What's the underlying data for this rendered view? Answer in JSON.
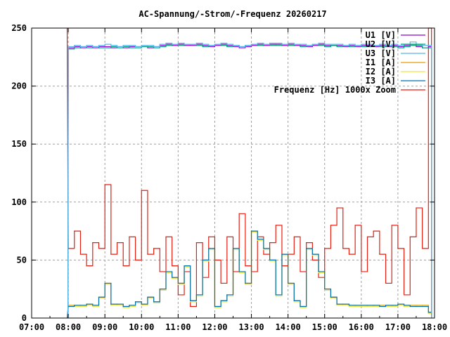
{
  "chart_data": {
    "type": "line",
    "title": "AC-Spannung/-Strom/-Frequenz 20260217",
    "xlabel": "",
    "ylabel": "",
    "ylim": [
      0,
      250
    ],
    "xlim": [
      "07:00",
      "18:00"
    ],
    "yticks": [
      "0",
      "50",
      "100",
      "150",
      "200",
      "250"
    ],
    "xticks": [
      "07:00",
      "08:00",
      "09:00",
      "10:00",
      "11:00",
      "12:00",
      "13:00",
      "14:00",
      "15:00",
      "16:00",
      "17:00",
      "18:00"
    ],
    "grid": true,
    "legend_position": "top-right",
    "x": [
      "08:00",
      "08:10",
      "08:20",
      "08:30",
      "08:40",
      "08:50",
      "09:00",
      "09:10",
      "09:20",
      "09:30",
      "09:40",
      "09:50",
      "10:00",
      "10:10",
      "10:20",
      "10:30",
      "10:40",
      "10:50",
      "11:00",
      "11:10",
      "11:20",
      "11:30",
      "11:40",
      "11:50",
      "12:00",
      "12:10",
      "12:20",
      "12:30",
      "12:40",
      "12:50",
      "13:00",
      "13:10",
      "13:20",
      "13:30",
      "13:40",
      "13:50",
      "14:00",
      "14:10",
      "14:20",
      "14:30",
      "14:40",
      "14:50",
      "15:00",
      "15:10",
      "15:20",
      "15:30",
      "15:40",
      "15:50",
      "16:00",
      "16:10",
      "16:20",
      "16:30",
      "16:40",
      "16:50",
      "17:00",
      "17:10",
      "17:20",
      "17:30",
      "17:40",
      "17:50"
    ],
    "series": [
      {
        "name": "U1 [V]",
        "color": "#9400d3",
        "values": [
          233,
          234,
          233,
          234,
          233,
          234,
          234,
          233,
          234,
          233,
          234,
          234,
          234,
          233,
          234,
          235,
          236,
          235,
          236,
          235,
          235,
          236,
          235,
          234,
          235,
          236,
          235,
          234,
          233,
          234,
          235,
          236,
          235,
          236,
          236,
          235,
          236,
          235,
          235,
          234,
          235,
          236,
          235,
          235,
          235,
          234,
          235,
          234,
          235,
          235,
          234,
          235,
          234,
          235,
          234,
          235,
          236,
          234,
          233,
          234
        ]
      },
      {
        "name": "U2 [V]",
        "color": "#009e73",
        "values": [
          232,
          233,
          234,
          233,
          234,
          233,
          233,
          234,
          233,
          234,
          233,
          233,
          234,
          234,
          233,
          234,
          235,
          236,
          235,
          236,
          236,
          235,
          234,
          235,
          236,
          235,
          234,
          235,
          234,
          235,
          236,
          235,
          236,
          235,
          235,
          236,
          235,
          236,
          234,
          235,
          236,
          235,
          234,
          235,
          234,
          235,
          234,
          235,
          234,
          234,
          235,
          234,
          235,
          234,
          233,
          234,
          235,
          235,
          233,
          233
        ]
      },
      {
        "name": "U3 [V]",
        "color": "#56b4e9",
        "values": [
          234,
          235,
          234,
          235,
          234,
          235,
          236,
          235,
          234,
          235,
          235,
          234,
          235,
          235,
          234,
          236,
          237,
          236,
          237,
          236,
          236,
          237,
          236,
          235,
          236,
          237,
          236,
          235,
          234,
          235,
          236,
          237,
          236,
          237,
          237,
          236,
          237,
          236,
          236,
          235,
          236,
          237,
          236,
          236,
          236,
          235,
          236,
          235,
          236,
          236,
          235,
          236,
          235,
          236,
          235,
          236,
          238,
          236,
          235,
          235
        ]
      },
      {
        "name": "I1 [A]",
        "color": "#e69f00",
        "values": [
          11,
          11,
          11,
          12,
          11,
          18,
          30,
          12,
          12,
          10,
          11,
          14,
          12,
          18,
          14,
          25,
          40,
          35,
          30,
          45,
          15,
          20,
          50,
          60,
          10,
          15,
          20,
          60,
          40,
          30,
          75,
          68,
          60,
          50,
          20,
          55,
          30,
          15,
          10,
          60,
          55,
          40,
          25,
          18,
          12,
          12,
          11,
          11,
          11,
          11,
          11,
          11,
          11,
          11,
          12,
          11,
          11,
          11,
          11,
          5
        ]
      },
      {
        "name": "I2 [A]",
        "color": "#f0e442",
        "values": [
          10,
          10,
          10,
          11,
          10,
          17,
          29,
          11,
          11,
          9,
          10,
          13,
          11,
          17,
          13,
          24,
          39,
          34,
          29,
          44,
          14,
          19,
          49,
          59,
          9,
          14,
          19,
          59,
          39,
          29,
          74,
          67,
          59,
          49,
          19,
          54,
          29,
          14,
          9,
          59,
          54,
          39,
          24,
          17,
          11,
          11,
          10,
          10,
          10,
          10,
          10,
          10,
          10,
          10,
          11,
          10,
          10,
          10,
          10,
          4
        ]
      },
      {
        "name": "I3 [A]",
        "color": "#0072b2",
        "values": [
          10,
          11,
          11,
          12,
          11,
          18,
          30,
          12,
          12,
          10,
          11,
          14,
          12,
          18,
          14,
          25,
          40,
          35,
          30,
          45,
          15,
          20,
          50,
          60,
          10,
          15,
          20,
          60,
          40,
          30,
          75,
          68,
          60,
          50,
          20,
          55,
          30,
          15,
          10,
          60,
          55,
          40,
          25,
          18,
          12,
          12,
          11,
          11,
          11,
          11,
          11,
          10,
          11,
          11,
          12,
          11,
          10,
          10,
          10,
          5
        ]
      },
      {
        "name": "Frequenz [Hz] 1000x Zoom",
        "color": "#e51e10",
        "values": [
          60,
          75,
          55,
          45,
          65,
          60,
          115,
          55,
          65,
          45,
          70,
          50,
          110,
          55,
          60,
          40,
          70,
          45,
          20,
          40,
          10,
          65,
          35,
          70,
          50,
          30,
          70,
          40,
          90,
          45,
          40,
          70,
          55,
          65,
          80,
          45,
          55,
          70,
          40,
          65,
          50,
          35,
          60,
          80,
          95,
          60,
          55,
          80,
          40,
          70,
          75,
          55,
          30,
          80,
          60,
          20,
          70,
          95,
          60,
          250
        ]
      }
    ]
  }
}
